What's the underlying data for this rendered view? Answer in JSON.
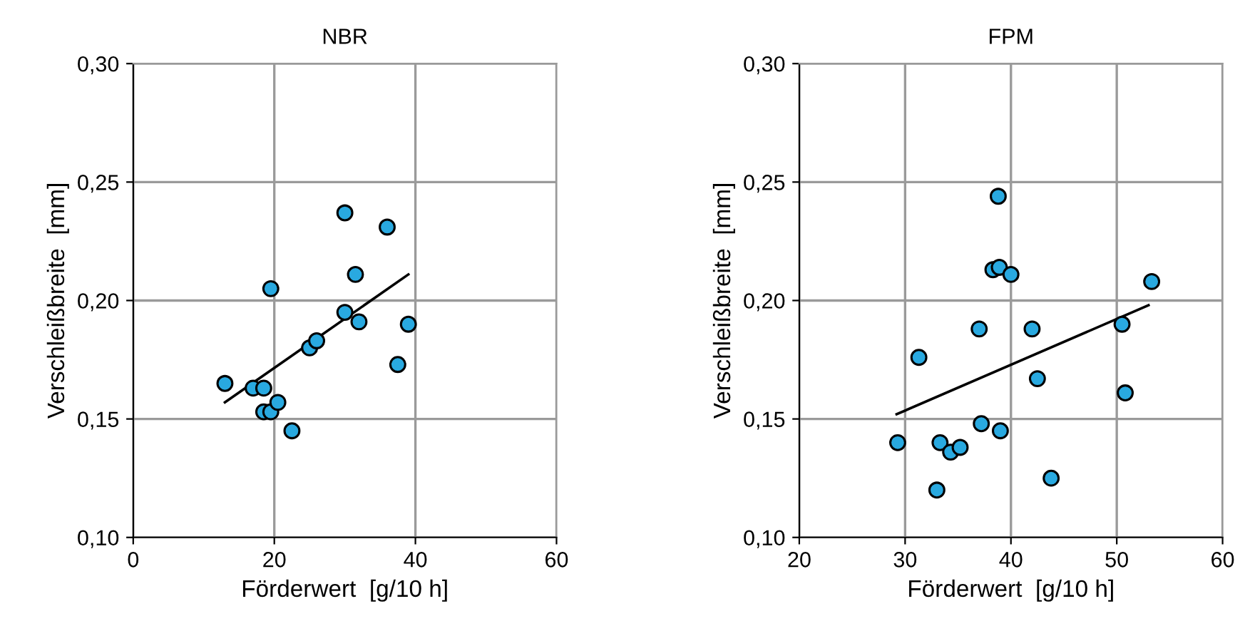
{
  "chart_data": [
    {
      "type": "scatter",
      "title": "NBR",
      "xlabel": "Förderwert  [g/10 h]",
      "ylabel": "Verschleißbreite  [mm]",
      "xlim": [
        0,
        60
      ],
      "xticks": [
        0,
        20,
        40,
        60
      ],
      "ylim": [
        0.1,
        0.3
      ],
      "yticks": [
        {
          "value": 0.1,
          "label": "0,10"
        },
        {
          "value": 0.15,
          "label": "0,15"
        },
        {
          "value": 0.2,
          "label": "0,20"
        },
        {
          "value": 0.25,
          "label": "0,25"
        },
        {
          "value": 0.3,
          "label": "0,30"
        }
      ],
      "grid": true,
      "marker": "circle",
      "series": [
        {
          "color": "#29a9e0",
          "x": [
            13,
            17,
            18.5,
            19.5,
            18.5,
            19.5,
            20.5,
            22.5,
            25,
            26,
            30,
            31.5,
            30,
            32,
            36,
            37.5,
            39
          ],
          "values": [
            0.165,
            0.163,
            0.163,
            0.205,
            0.153,
            0.153,
            0.157,
            0.145,
            0.18,
            0.183,
            0.237,
            0.211,
            0.195,
            0.191,
            0.231,
            0.173,
            0.19
          ]
        },
        {
          "type": "line",
          "color": "#000000",
          "marker": "none",
          "x": [
            13,
            39
          ],
          "values": [
            0.157,
            0.211
          ]
        }
      ]
    },
    {
      "type": "scatter",
      "title": "FPM",
      "xlabel": "Förderwert  [g/10 h]",
      "ylabel": "Verschleißbreite  [mm]",
      "xlim": [
        20,
        60
      ],
      "xticks": [
        20,
        30,
        40,
        50,
        60
      ],
      "ylim": [
        0.1,
        0.3
      ],
      "yticks": [
        {
          "value": 0.1,
          "label": "0,10"
        },
        {
          "value": 0.15,
          "label": "0,15"
        },
        {
          "value": 0.2,
          "label": "0,20"
        },
        {
          "value": 0.25,
          "label": "0,25"
        },
        {
          "value": 0.3,
          "label": "0,30"
        }
      ],
      "grid": true,
      "marker": "circle",
      "series": [
        {
          "color": "#29a9e0",
          "x": [
            29.3,
            31.3,
            33,
            33.3,
            34.3,
            35.2,
            37,
            37.2,
            38.3,
            38.8,
            38.9,
            39,
            40,
            42,
            42.5,
            43.8,
            50.5,
            50.8,
            53.3
          ],
          "values": [
            0.14,
            0.176,
            0.12,
            0.14,
            0.136,
            0.138,
            0.188,
            0.148,
            0.213,
            0.244,
            0.214,
            0.145,
            0.211,
            0.188,
            0.167,
            0.125,
            0.19,
            0.161,
            0.208
          ]
        },
        {
          "type": "line",
          "color": "#000000",
          "marker": "none",
          "x": [
            29.2,
            53
          ],
          "values": [
            0.152,
            0.198
          ]
        }
      ]
    }
  ]
}
